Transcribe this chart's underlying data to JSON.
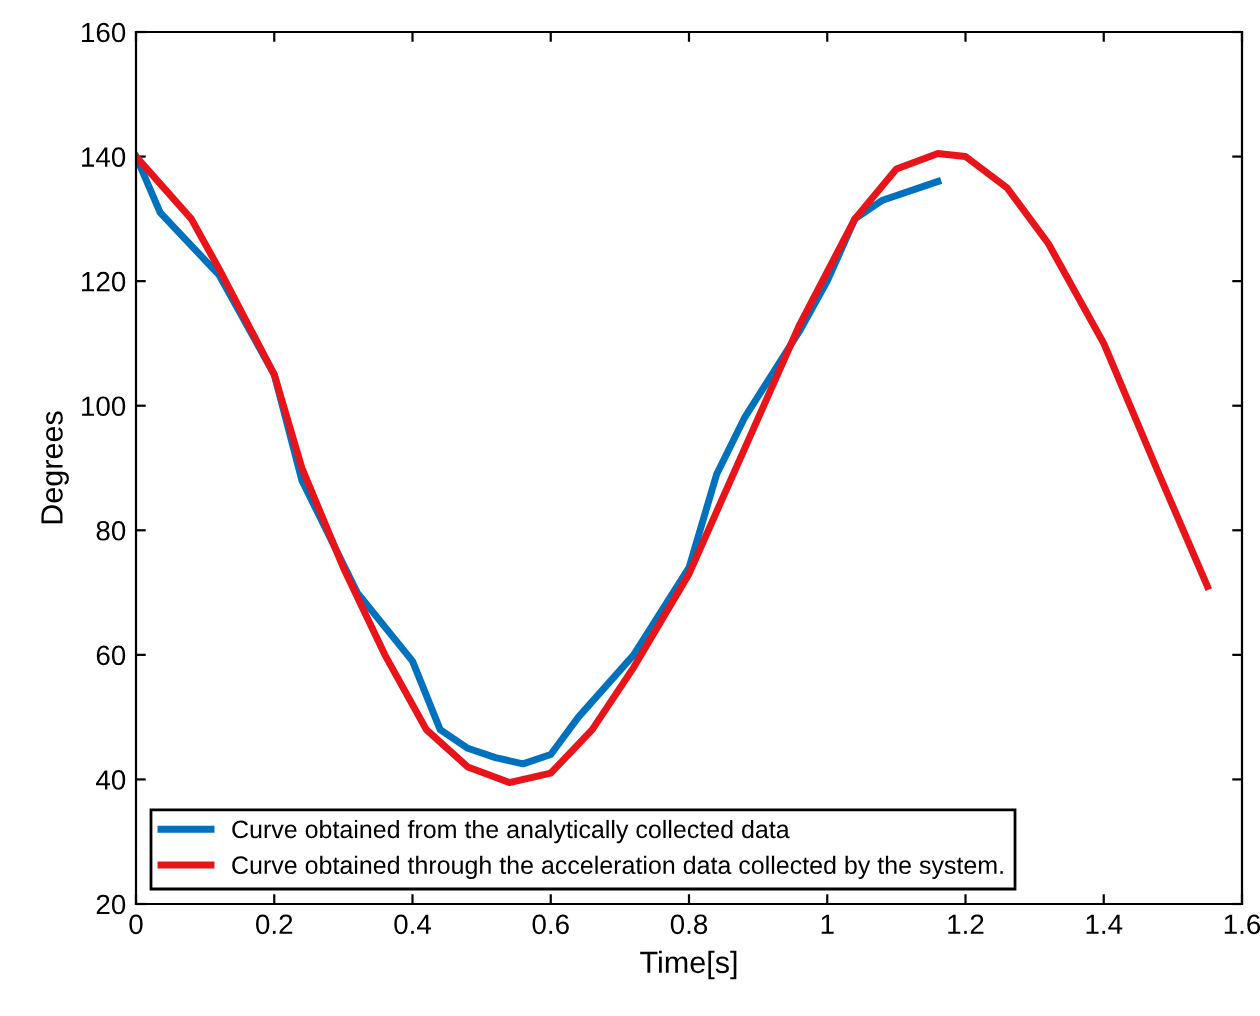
{
  "chart_data": {
    "type": "line",
    "xlabel": "Time[s]",
    "ylabel": "Degrees",
    "xlim": [
      0,
      1.6
    ],
    "ylim": [
      20,
      160
    ],
    "xticks": [
      0,
      0.2,
      0.4,
      0.6,
      0.8,
      1,
      1.2,
      1.4,
      1.6
    ],
    "yticks": [
      20,
      40,
      60,
      80,
      100,
      120,
      140,
      160
    ],
    "grid": false,
    "legend": "bottom left",
    "marker": "none",
    "line_style": "solid",
    "series": [
      {
        "name": "Curve obtained from the analytically collected data",
        "color": "#0072bd",
        "x": [
          0,
          0.035,
          0.12,
          0.2,
          0.24,
          0.32,
          0.4,
          0.44,
          0.48,
          0.52,
          0.56,
          0.6,
          0.64,
          0.72,
          0.8,
          0.84,
          0.88,
          0.96,
          1.0,
          1.04,
          1.08,
          1.16
        ],
        "values": [
          140,
          131,
          121,
          105,
          88,
          70,
          59,
          48,
          45,
          43.5,
          42.5,
          44,
          50,
          60,
          74,
          89,
          98,
          112,
          120,
          130,
          133,
          136
        ]
      },
      {
        "name": "Curve obtained through the acceleration data collected by the system.",
        "color": "#e8141a",
        "x": [
          0,
          0.08,
          0.12,
          0.2,
          0.24,
          0.3,
          0.36,
          0.42,
          0.48,
          0.54,
          0.6,
          0.66,
          0.72,
          0.8,
          0.88,
          0.96,
          1.04,
          1.1,
          1.16,
          1.2,
          1.26,
          1.32,
          1.4,
          1.48,
          1.55
        ],
        "values": [
          140,
          130,
          122,
          105,
          90,
          74,
          60,
          48,
          42,
          39.5,
          41,
          48,
          58,
          73,
          93,
          113,
          130,
          138,
          140.5,
          140,
          135,
          126,
          110,
          89,
          71
        ]
      }
    ]
  }
}
